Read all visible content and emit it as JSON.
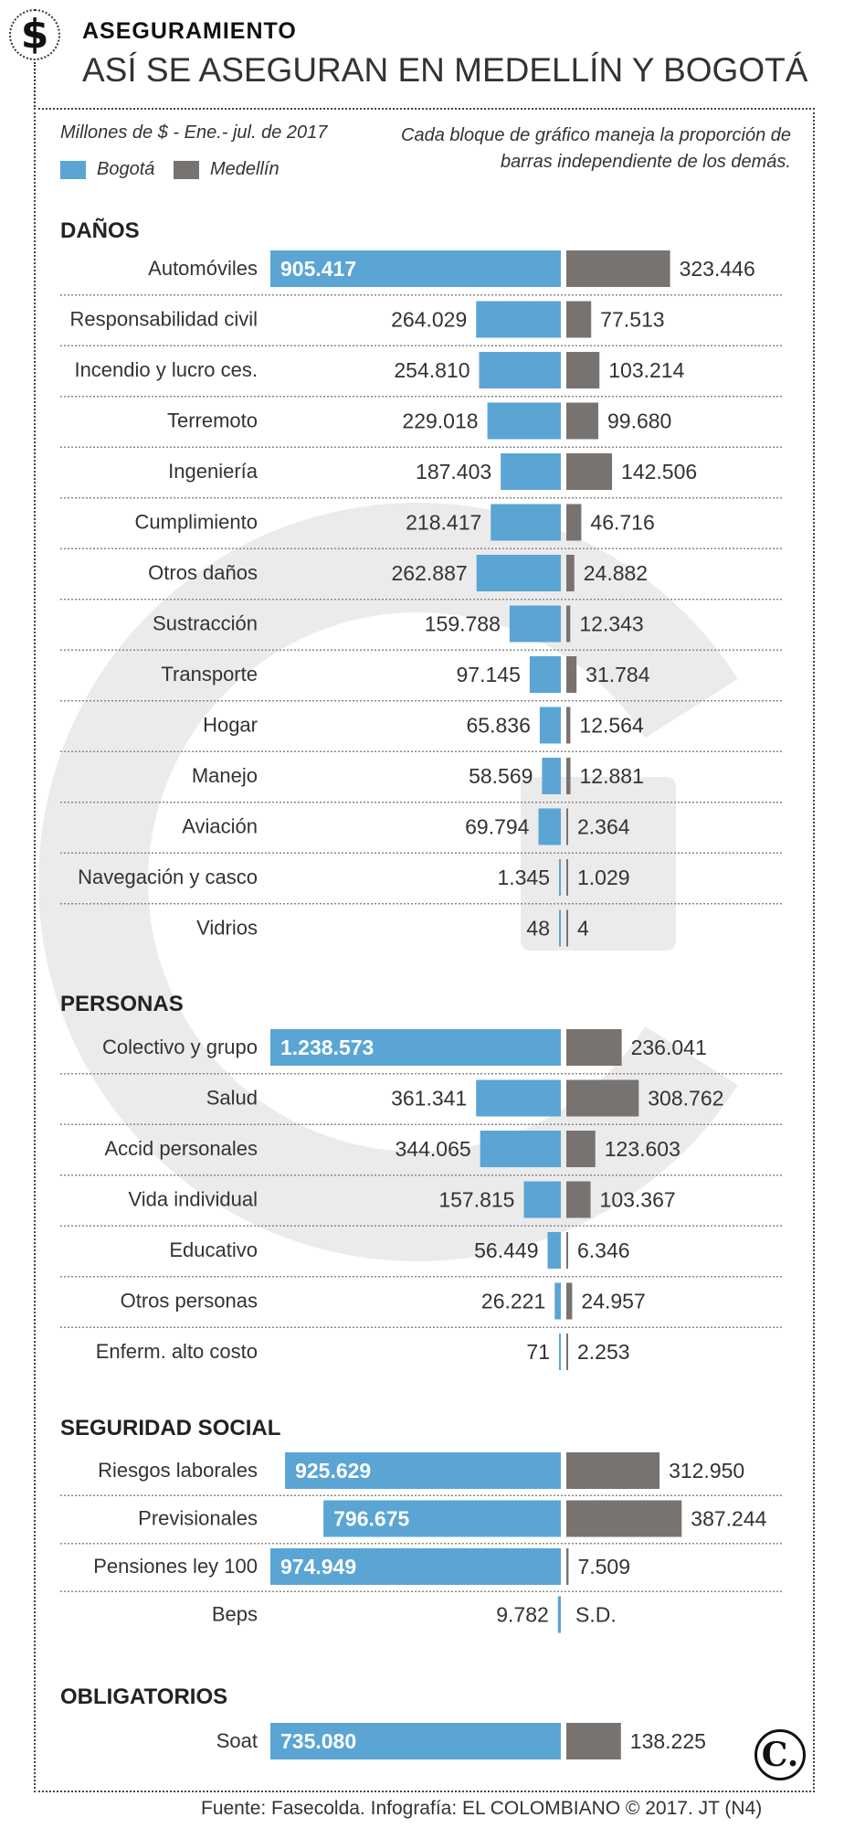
{
  "header": {
    "icon_symbol": "$",
    "section_label": "ASEGURAMIENTO",
    "title": "ASÍ SE ASEGURAN EN MEDELLÍN Y BOGOTÁ"
  },
  "subtitle": "Millones de $ - Ene.- jul. de 2017",
  "note": "Cada bloque de gráfico maneja la proporción de barras independiente de los demás.",
  "colors": {
    "bogota": "#5aa5d4",
    "medellin": "#777370",
    "watermark": "#dcdcdc"
  },
  "footer": "Fuente: Fasecolda. Infografía: EL COLOMBIANO © 2017. JT (N4)",
  "logo_text": "C.",
  "chart_data": {
    "type": "bar",
    "orientation": "horizontal-butterfly",
    "legend": [
      {
        "name": "Bogotá",
        "color": "#5aa5d4"
      },
      {
        "name": "Medellín",
        "color": "#777370"
      }
    ],
    "groups": [
      {
        "title": "DAÑOS",
        "categories": [
          "Automóviles",
          "Responsabilidad civil",
          "Incendio y lucro ces.",
          "Terremoto",
          "Ingeniería",
          "Cumplimiento",
          "Otros daños",
          "Sustracción",
          "Transporte",
          "Hogar",
          "Manejo",
          "Aviación",
          "Navegación y casco",
          "Vidrios"
        ],
        "series": [
          {
            "name": "Bogotá",
            "values": [
              905417,
              264029,
              254810,
              229018,
              187403,
              218417,
              262887,
              159788,
              97145,
              65836,
              58569,
              69794,
              1345,
              48
            ]
          },
          {
            "name": "Medellín",
            "values": [
              323446,
              77513,
              103214,
              99680,
              142506,
              46716,
              24882,
              12343,
              31784,
              12564,
              12881,
              2364,
              1029,
              4
            ]
          }
        ],
        "labels": [
          [
            "905.417",
            "323.446"
          ],
          [
            "264.029",
            "77.513"
          ],
          [
            "254.810",
            "103.214"
          ],
          [
            "229.018",
            "99.680"
          ],
          [
            "187.403",
            "142.506"
          ],
          [
            "218.417",
            "46.716"
          ],
          [
            "262.887",
            "24.882"
          ],
          [
            "159.788",
            "12.343"
          ],
          [
            "97.145",
            "31.784"
          ],
          [
            "65.836",
            "12.564"
          ],
          [
            "58.569",
            "12.881"
          ],
          [
            "69.794",
            "2.364"
          ],
          [
            "1.345",
            "1.029"
          ],
          [
            "48",
            "4"
          ]
        ]
      },
      {
        "title": "PERSONAS",
        "categories": [
          "Colectivo y grupo",
          "Salud",
          "Accid personales",
          "Vida individual",
          "Educativo",
          "Otros personas",
          "Enferm. alto costo"
        ],
        "series": [
          {
            "name": "Bogotá",
            "values": [
              1238573,
              361341,
              344065,
              157815,
              56449,
              26221,
              71
            ]
          },
          {
            "name": "Medellín",
            "values": [
              236041,
              308762,
              123603,
              103367,
              6346,
              24957,
              2253
            ]
          }
        ],
        "labels": [
          [
            "1.238.573",
            "236.041"
          ],
          [
            "361.341",
            "308.762"
          ],
          [
            "344.065",
            "123.603"
          ],
          [
            "157.815",
            "103.367"
          ],
          [
            "56.449",
            "6.346"
          ],
          [
            "26.221",
            "24.957"
          ],
          [
            "71",
            "2.253"
          ]
        ]
      },
      {
        "title": "SEGURIDAD SOCIAL",
        "categories": [
          "Riesgos laborales",
          "Previsionales",
          "Pensiones ley 100",
          "Beps"
        ],
        "series": [
          {
            "name": "Bogotá",
            "values": [
              925629,
              796675,
              974949,
              9782
            ]
          },
          {
            "name": "Medellín",
            "values": [
              312950,
              387244,
              7509,
              null
            ]
          }
        ],
        "labels": [
          [
            "925.629",
            "312.950"
          ],
          [
            "796.675",
            "387.244"
          ],
          [
            "974.949",
            "7.509"
          ],
          [
            "9.782",
            "S.D."
          ]
        ]
      },
      {
        "title": "OBLIGATORIOS",
        "categories": [
          "Soat"
        ],
        "series": [
          {
            "name": "Bogotá",
            "values": [
              735080
            ]
          },
          {
            "name": "Medellín",
            "values": [
              138225
            ]
          }
        ],
        "labels": [
          [
            "735.080",
            "138.225"
          ]
        ]
      }
    ]
  }
}
